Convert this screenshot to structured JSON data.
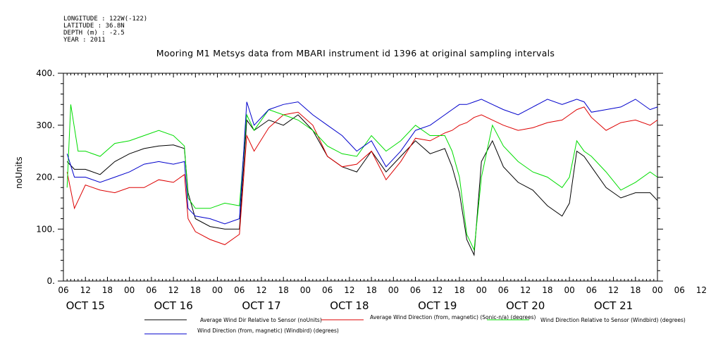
{
  "meta": {
    "longitude": "LONGITUDE : 122W(-122)",
    "latitude": "LATITUDE : 36.8N",
    "depth": "DEPTH (m) : -2.5",
    "year": "YEAR : 2011"
  },
  "chart_data": {
    "type": "line",
    "title": "Mooring M1 Metsys data from MBARI instrument id 1396 at original sampling intervals",
    "ylabel": "noUnits",
    "xlabel": "",
    "ylim": [
      0,
      400
    ],
    "yticks": [
      0,
      100,
      200,
      300,
      400
    ],
    "xlim_hours": [
      0,
      162
    ],
    "x_hour_ticks": [
      "06",
      "12",
      "18",
      "00",
      "06",
      "12",
      "18",
      "00",
      "06",
      "12",
      "18",
      "00",
      "06",
      "12",
      "18",
      "00",
      "06",
      "12",
      "18",
      "00",
      "06",
      "12",
      "18",
      "00",
      "06",
      "12",
      "18",
      "00",
      "06",
      "12",
      "18",
      "00"
    ],
    "x_day_labels": [
      "OCT 15",
      "OCT 16",
      "OCT 17",
      "OCT 18",
      "OCT 19",
      "OCT 20",
      "OCT 21"
    ],
    "grid": false,
    "legend_placement": "bottom",
    "series": [
      {
        "name": "Average Wind Dir Relative to Sensor (noUnits)",
        "color": "#000000",
        "points": [
          [
            1,
            230
          ],
          [
            3,
            215
          ],
          [
            6,
            215
          ],
          [
            10,
            205
          ],
          [
            14,
            230
          ],
          [
            18,
            245
          ],
          [
            22,
            255
          ],
          [
            26,
            260
          ],
          [
            30,
            262
          ],
          [
            33,
            255
          ],
          [
            34,
            170
          ],
          [
            36,
            120
          ],
          [
            40,
            105
          ],
          [
            44,
            100
          ],
          [
            48,
            100
          ],
          [
            50,
            310
          ],
          [
            52,
            290
          ],
          [
            56,
            310
          ],
          [
            60,
            300
          ],
          [
            64,
            320
          ],
          [
            68,
            290
          ],
          [
            72,
            240
          ],
          [
            76,
            220
          ],
          [
            80,
            210
          ],
          [
            84,
            250
          ],
          [
            88,
            210
          ],
          [
            92,
            240
          ],
          [
            96,
            270
          ],
          [
            100,
            245
          ],
          [
            104,
            255
          ],
          [
            106,
            220
          ],
          [
            108,
            170
          ],
          [
            110,
            80
          ],
          [
            112,
            50
          ],
          [
            114,
            230
          ],
          [
            117,
            270
          ],
          [
            120,
            220
          ],
          [
            124,
            190
          ],
          [
            128,
            175
          ],
          [
            132,
            145
          ],
          [
            136,
            125
          ],
          [
            138,
            150
          ],
          [
            140,
            250
          ],
          [
            142,
            240
          ],
          [
            144,
            220
          ],
          [
            148,
            180
          ],
          [
            152,
            160
          ],
          [
            156,
            170
          ],
          [
            160,
            170
          ],
          [
            162,
            155
          ]
        ]
      },
      {
        "name": "Average Wind Direction (from, magnetic) (Sonic-n/a) (degrees)",
        "color": "#dd0000",
        "points": [
          [
            1,
            210
          ],
          [
            3,
            140
          ],
          [
            6,
            185
          ],
          [
            10,
            175
          ],
          [
            14,
            170
          ],
          [
            18,
            180
          ],
          [
            22,
            180
          ],
          [
            26,
            195
          ],
          [
            30,
            190
          ],
          [
            33,
            205
          ],
          [
            34,
            120
          ],
          [
            36,
            95
          ],
          [
            40,
            80
          ],
          [
            44,
            70
          ],
          [
            48,
            90
          ],
          [
            50,
            280
          ],
          [
            52,
            250
          ],
          [
            56,
            295
          ],
          [
            60,
            320
          ],
          [
            64,
            325
          ],
          [
            68,
            300
          ],
          [
            72,
            240
          ],
          [
            76,
            220
          ],
          [
            80,
            225
          ],
          [
            84,
            250
          ],
          [
            88,
            195
          ],
          [
            92,
            230
          ],
          [
            96,
            275
          ],
          [
            100,
            270
          ],
          [
            104,
            285
          ],
          [
            106,
            290
          ],
          [
            108,
            300
          ],
          [
            110,
            305
          ],
          [
            112,
            315
          ],
          [
            114,
            320
          ],
          [
            117,
            310
          ],
          [
            120,
            300
          ],
          [
            124,
            290
          ],
          [
            128,
            295
          ],
          [
            132,
            305
          ],
          [
            136,
            310
          ],
          [
            138,
            320
          ],
          [
            140,
            330
          ],
          [
            142,
            335
          ],
          [
            144,
            315
          ],
          [
            148,
            290
          ],
          [
            152,
            305
          ],
          [
            156,
            310
          ],
          [
            160,
            300
          ],
          [
            162,
            310
          ]
        ]
      },
      {
        "name": "Wind Direction Relative to Sensor (Windbird) (degrees)",
        "color": "#00dd00",
        "points": [
          [
            1,
            180
          ],
          [
            2,
            340
          ],
          [
            4,
            250
          ],
          [
            6,
            250
          ],
          [
            10,
            240
          ],
          [
            14,
            265
          ],
          [
            18,
            270
          ],
          [
            22,
            280
          ],
          [
            26,
            290
          ],
          [
            30,
            280
          ],
          [
            33,
            260
          ],
          [
            34,
            160
          ],
          [
            36,
            140
          ],
          [
            40,
            140
          ],
          [
            44,
            150
          ],
          [
            48,
            145
          ],
          [
            50,
            320
          ],
          [
            52,
            290
          ],
          [
            56,
            330
          ],
          [
            60,
            320
          ],
          [
            64,
            310
          ],
          [
            68,
            290
          ],
          [
            72,
            260
          ],
          [
            76,
            245
          ],
          [
            80,
            240
          ],
          [
            84,
            280
          ],
          [
            88,
            250
          ],
          [
            92,
            270
          ],
          [
            96,
            300
          ],
          [
            100,
            280
          ],
          [
            104,
            280
          ],
          [
            106,
            250
          ],
          [
            108,
            200
          ],
          [
            110,
            90
          ],
          [
            112,
            60
          ],
          [
            114,
            200
          ],
          [
            117,
            300
          ],
          [
            120,
            260
          ],
          [
            124,
            230
          ],
          [
            128,
            210
          ],
          [
            132,
            200
          ],
          [
            136,
            180
          ],
          [
            138,
            200
          ],
          [
            140,
            270
          ],
          [
            142,
            250
          ],
          [
            144,
            240
          ],
          [
            148,
            210
          ],
          [
            152,
            175
          ],
          [
            156,
            190
          ],
          [
            160,
            210
          ],
          [
            162,
            200
          ]
        ]
      },
      {
        "name": "Wind Direction (from, magnetic) (Windbird) (degrees)",
        "color": "#0000cc",
        "points": [
          [
            1,
            245
          ],
          [
            3,
            200
          ],
          [
            6,
            200
          ],
          [
            10,
            190
          ],
          [
            14,
            200
          ],
          [
            18,
            210
          ],
          [
            22,
            225
          ],
          [
            26,
            230
          ],
          [
            30,
            225
          ],
          [
            33,
            230
          ],
          [
            34,
            140
          ],
          [
            36,
            125
          ],
          [
            40,
            120
          ],
          [
            44,
            110
          ],
          [
            48,
            120
          ],
          [
            50,
            345
          ],
          [
            52,
            300
          ],
          [
            56,
            330
          ],
          [
            60,
            340
          ],
          [
            64,
            345
          ],
          [
            68,
            320
          ],
          [
            72,
            300
          ],
          [
            76,
            280
          ],
          [
            80,
            250
          ],
          [
            84,
            270
          ],
          [
            88,
            220
          ],
          [
            92,
            250
          ],
          [
            96,
            290
          ],
          [
            100,
            300
          ],
          [
            104,
            320
          ],
          [
            106,
            330
          ],
          [
            108,
            340
          ],
          [
            110,
            340
          ],
          [
            112,
            345
          ],
          [
            114,
            350
          ],
          [
            117,
            340
          ],
          [
            120,
            330
          ],
          [
            124,
            320
          ],
          [
            128,
            335
          ],
          [
            132,
            350
          ],
          [
            136,
            340
          ],
          [
            138,
            345
          ],
          [
            140,
            350
          ],
          [
            142,
            345
          ],
          [
            144,
            325
          ],
          [
            148,
            330
          ],
          [
            152,
            335
          ],
          [
            156,
            350
          ],
          [
            160,
            330
          ],
          [
            162,
            335
          ]
        ]
      }
    ]
  }
}
